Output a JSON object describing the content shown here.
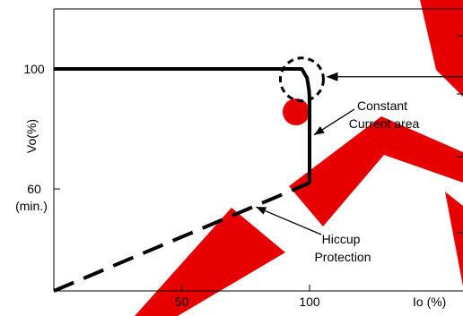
{
  "chart_data": {
    "type": "line",
    "title": "",
    "xlabel": "Io (%)",
    "ylabel": "Vo(%)",
    "xlim": [
      0,
      160
    ],
    "ylim": [
      26,
      120
    ],
    "grid": false,
    "x_ticks": [
      50,
      100
    ],
    "y_ticks": [
      {
        "value": 100,
        "label": "100",
        "sublabel": ""
      },
      {
        "value": 60,
        "label": "60",
        "sublabel": "(min.)"
      }
    ],
    "series": [
      {
        "style": "solid",
        "points": [
          [
            0,
            100
          ],
          [
            97,
            100
          ],
          [
            99,
            97
          ],
          [
            99.8,
            93
          ],
          [
            100,
            90
          ],
          [
            100,
            62
          ]
        ]
      },
      {
        "style": "dashed",
        "points": [
          [
            0,
            26
          ],
          [
            100,
            62
          ]
        ]
      }
    ],
    "annotations": [
      {
        "lines": [
          "Constant",
          "Current area"
        ],
        "target": [
          100,
          78
        ]
      },
      {
        "lines": [
          "Hiccup",
          "Protection"
        ],
        "target": [
          78,
          54
        ]
      }
    ],
    "highlight": {
      "center": [
        97,
        96.5
      ]
    },
    "colors": {
      "curve": "#000000",
      "watermark": "#e60000"
    }
  }
}
